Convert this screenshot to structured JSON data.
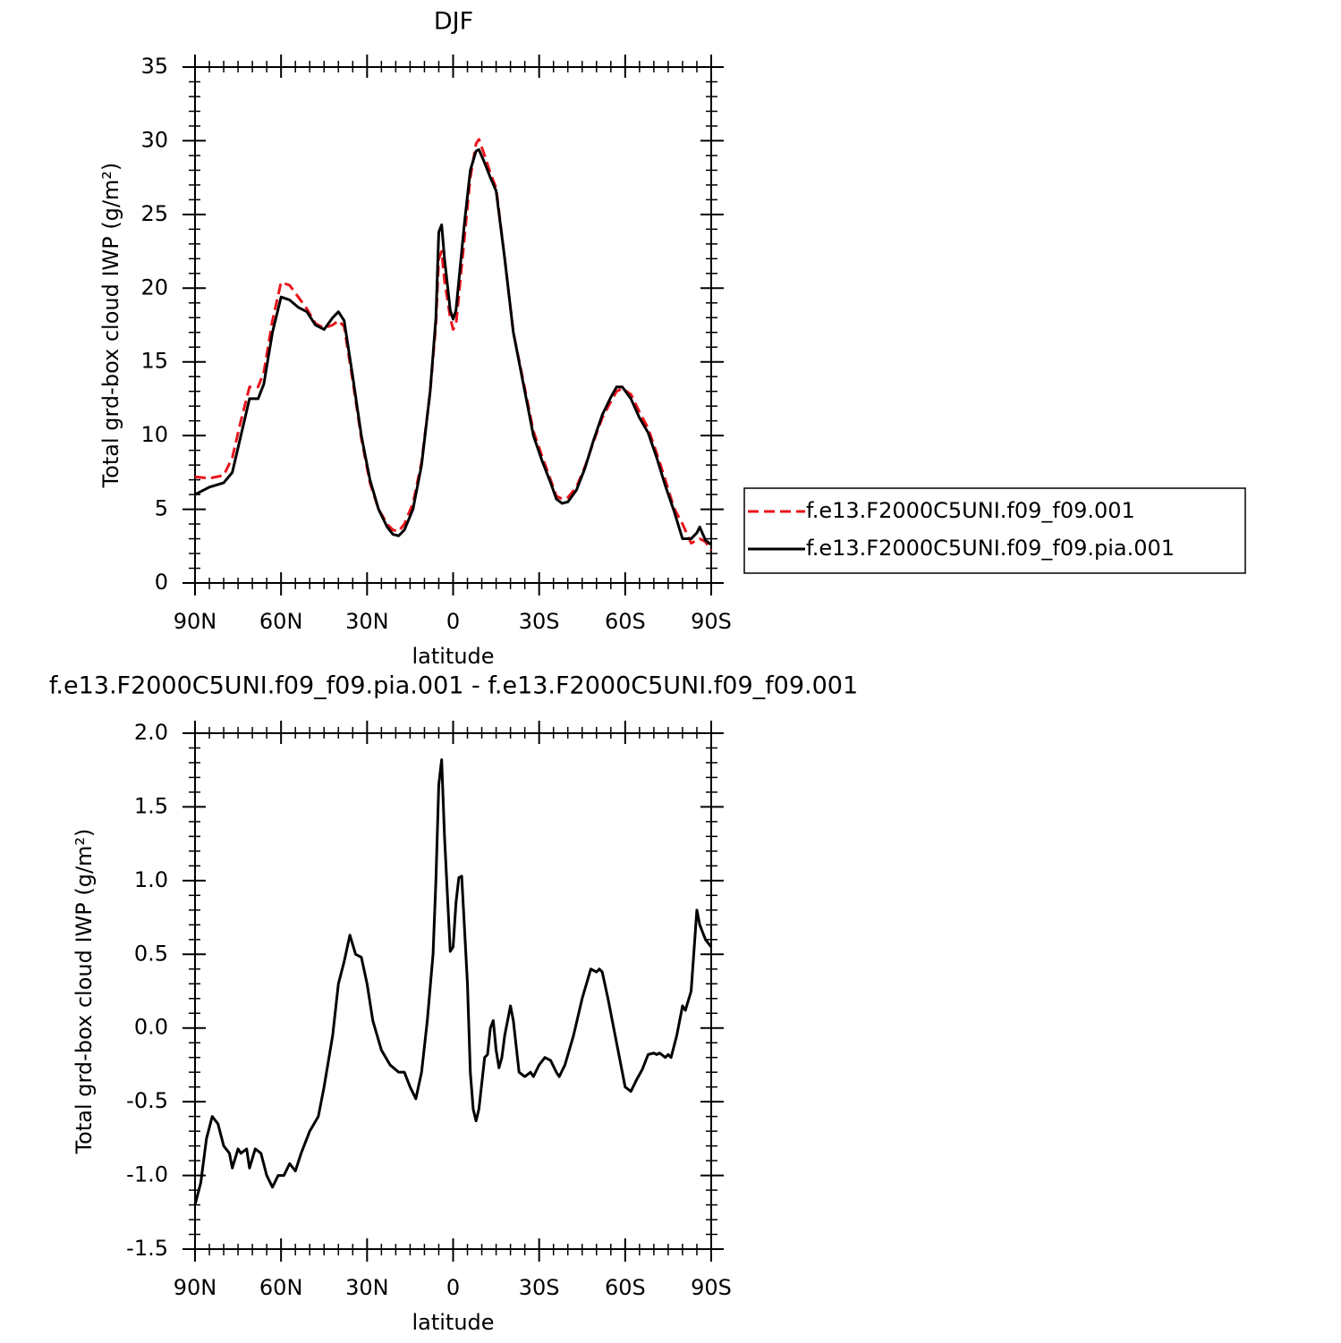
{
  "chart_data": [
    {
      "type": "line",
      "title": "DJF",
      "x_label": "latitude",
      "y_label": "Total grd-box cloud IWP (g/m²)",
      "x": [
        90,
        85,
        80,
        77,
        74,
        71,
        68,
        66,
        63,
        60,
        57,
        54,
        51,
        48,
        45,
        42,
        40,
        38,
        35,
        32,
        29,
        26,
        23,
        21,
        19,
        17,
        14,
        11,
        8,
        6,
        5,
        4,
        3,
        1,
        0,
        -1,
        -2,
        -4,
        -6,
        -8,
        -9,
        -11,
        -13,
        -15,
        -18,
        -21,
        -25,
        -28,
        -31,
        -34,
        -36,
        -38,
        -40,
        -43,
        -46,
        -49,
        -52,
        -55,
        -57,
        -59,
        -62,
        -65,
        -68,
        -71,
        -74,
        -77,
        -80,
        -83,
        -85,
        -86,
        -88,
        -90
      ],
      "series": [
        {
          "name": "f.e13.F2000C5UNI.f09_f09.001",
          "color": "#e8141c",
          "line_style": "dashed",
          "values": [
            7.2,
            7.1,
            7.3,
            8.5,
            11.0,
            13.3,
            13.3,
            14.3,
            17.8,
            20.4,
            20.2,
            19.4,
            18.6,
            17.6,
            17.3,
            17.5,
            17.8,
            17.4,
            13.7,
            9.8,
            6.8,
            5.0,
            4.0,
            3.6,
            3.5,
            4.0,
            5.4,
            8.2,
            13.0,
            17.5,
            22.0,
            22.5,
            20.5,
            18.0,
            17.2,
            17.5,
            19.5,
            23.5,
            27.5,
            29.8,
            30.1,
            29.0,
            27.8,
            26.8,
            22.0,
            17.0,
            13.2,
            10.3,
            8.6,
            7.0,
            5.9,
            5.7,
            5.8,
            6.5,
            7.9,
            9.6,
            11.2,
            12.3,
            13.0,
            13.2,
            12.8,
            11.6,
            10.5,
            8.8,
            7.0,
            5.1,
            4.0,
            2.7,
            2.9,
            3.0,
            2.8,
            2.2
          ]
        },
        {
          "name": "f.e13.F2000C5UNI.f09_f09.pia.001",
          "color": "#000000",
          "line_style": "solid",
          "values": [
            6.0,
            6.5,
            6.8,
            7.5,
            10.0,
            12.5,
            12.5,
            13.5,
            17.0,
            19.4,
            19.2,
            18.7,
            18.4,
            17.5,
            17.2,
            18.0,
            18.4,
            17.8,
            14.0,
            10.0,
            7.0,
            5.0,
            3.8,
            3.3,
            3.2,
            3.6,
            5.0,
            8.0,
            13.0,
            18.0,
            23.8,
            24.3,
            22.0,
            18.5,
            17.9,
            18.5,
            20.5,
            24.5,
            28.0,
            29.3,
            29.4,
            28.5,
            27.5,
            26.6,
            22.0,
            17.0,
            13.0,
            10.0,
            8.3,
            6.8,
            5.7,
            5.4,
            5.5,
            6.3,
            7.8,
            9.7,
            11.4,
            12.6,
            13.3,
            13.3,
            12.5,
            11.2,
            10.2,
            8.5,
            6.6,
            4.9,
            3.0,
            3.0,
            3.4,
            3.8,
            2.9,
            2.6
          ]
        }
      ],
      "xlim": [
        90,
        -90
      ],
      "xticks": [
        {
          "value": 90,
          "label": "90N"
        },
        {
          "value": 60,
          "label": "60N"
        },
        {
          "value": 30,
          "label": "30N"
        },
        0,
        {
          "value": -30,
          "label": "30S"
        },
        {
          "value": -60,
          "label": "60S"
        },
        {
          "value": -90,
          "label": "90S"
        }
      ],
      "ylim": [
        0,
        35
      ],
      "yticks": [
        0,
        5,
        10,
        15,
        20,
        25,
        30,
        35
      ],
      "legend": "right"
    },
    {
      "type": "line",
      "title": "f.e13.F2000C5UNI.f09_f09.pia.001 - f.e13.F2000C5UNI.f09_f09.001",
      "x_label": "latitude",
      "y_label": "Total grd-box cloud IWP (g/m²)",
      "x": [
        90,
        88,
        86,
        84,
        82,
        80,
        78,
        77,
        75,
        74,
        72,
        71,
        69,
        67,
        65,
        63,
        61,
        59,
        57,
        55,
        53,
        50,
        47,
        45,
        42,
        40,
        38,
        36,
        34,
        32,
        30,
        28,
        25,
        22,
        19,
        17,
        15,
        13,
        11,
        9,
        7,
        6,
        5,
        4,
        3,
        1,
        0,
        -1,
        -2,
        -3,
        -5,
        -6,
        -7,
        -8,
        -9,
        -11,
        -12,
        -13,
        -14,
        -15,
        -16,
        -17,
        -18,
        -20,
        -21,
        -23,
        -25,
        -27,
        -28,
        -30,
        -32,
        -34,
        -36,
        -37,
        -39,
        -42,
        -45,
        -48,
        -50,
        -51,
        -52,
        -54,
        -57,
        -59,
        -60,
        -62,
        -64,
        -66,
        -68,
        -70,
        -71,
        -72,
        -74,
        -75,
        -76,
        -78,
        -80,
        -81,
        -83,
        -85,
        -86,
        -88,
        -90
      ],
      "values": [
        -1.2,
        -1.05,
        -0.75,
        -0.6,
        -0.65,
        -0.8,
        -0.85,
        -0.95,
        -0.82,
        -0.85,
        -0.82,
        -0.95,
        -0.82,
        -0.85,
        -1.0,
        -1.08,
        -1.0,
        -1.0,
        -0.92,
        -0.97,
        -0.85,
        -0.7,
        -0.6,
        -0.4,
        -0.05,
        0.3,
        0.45,
        0.63,
        0.5,
        0.48,
        0.3,
        0.05,
        -0.15,
        -0.25,
        -0.3,
        -0.3,
        -0.4,
        -0.48,
        -0.3,
        0.05,
        0.5,
        1.0,
        1.65,
        1.82,
        1.3,
        0.52,
        0.55,
        0.85,
        1.02,
        1.03,
        0.3,
        -0.3,
        -0.55,
        -0.63,
        -0.55,
        -0.2,
        -0.18,
        0.0,
        0.05,
        -0.15,
        -0.27,
        -0.2,
        -0.05,
        0.15,
        0.05,
        -0.3,
        -0.33,
        -0.3,
        -0.33,
        -0.25,
        -0.2,
        -0.22,
        -0.3,
        -0.33,
        -0.25,
        -0.05,
        0.2,
        0.4,
        0.38,
        0.4,
        0.38,
        0.2,
        -0.1,
        -0.3,
        -0.4,
        -0.43,
        -0.35,
        -0.28,
        -0.18,
        -0.17,
        -0.18,
        -0.17,
        -0.2,
        -0.18,
        -0.2,
        -0.05,
        0.15,
        0.12,
        0.25,
        0.8,
        0.7,
        0.6,
        0.55
      ],
      "color": "#000000",
      "line_style": "solid",
      "xlim": [
        90,
        -90
      ],
      "xticks": [
        {
          "value": 90,
          "label": "90N"
        },
        {
          "value": 60,
          "label": "60N"
        },
        {
          "value": 30,
          "label": "30N"
        },
        0,
        {
          "value": -30,
          "label": "30S"
        },
        {
          "value": -60,
          "label": "60S"
        },
        {
          "value": -90,
          "label": "90S"
        }
      ],
      "ylim": [
        -1.5,
        2.0
      ],
      "yticks": [
        -1.5,
        {
          "value": -1,
          "label": "-1.0"
        },
        -0.5,
        {
          "value": 0,
          "label": "0.0"
        },
        0.5,
        {
          "value": 1,
          "label": "1.0"
        },
        1.5,
        {
          "value": 2,
          "label": "2.0"
        }
      ]
    }
  ]
}
